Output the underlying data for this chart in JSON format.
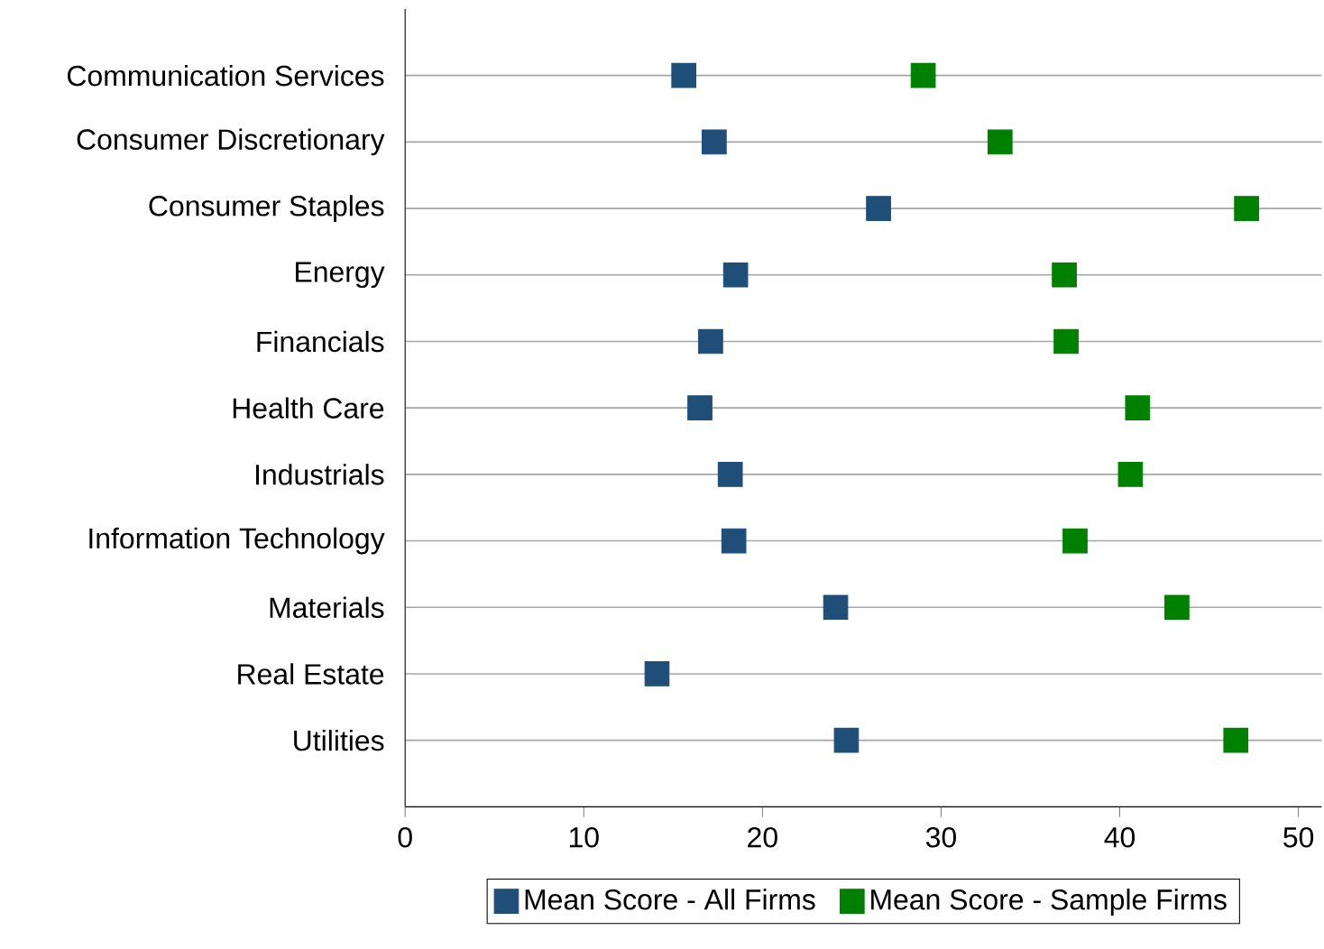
{
  "chart_data": {
    "type": "scatter",
    "orientation": "horizontal",
    "categories": [
      "Communication Services",
      "Consumer Discretionary",
      "Consumer Staples",
      "Energy",
      "Financials",
      "Health Care",
      "Industrials",
      "Information Technology",
      "Materials",
      "Real Estate",
      "Utilities"
    ],
    "series": [
      {
        "name": "Mean Score - All Firms",
        "color": "#1f4e79",
        "values": [
          15.6,
          17.3,
          26.5,
          18.5,
          17.1,
          16.5,
          18.2,
          18.4,
          24.1,
          14.1,
          24.7
        ]
      },
      {
        "name": "Mean Score - Sample Firms",
        "color": "#008000",
        "values": [
          29.0,
          33.3,
          47.1,
          36.9,
          37.0,
          41.0,
          40.6,
          37.5,
          43.2,
          null,
          46.5
        ]
      }
    ],
    "xlim": [
      0,
      51.3
    ],
    "xticks": [
      0,
      10,
      20,
      30,
      40,
      50
    ],
    "grid": "y",
    "legend": "bottom",
    "marker": "square"
  }
}
